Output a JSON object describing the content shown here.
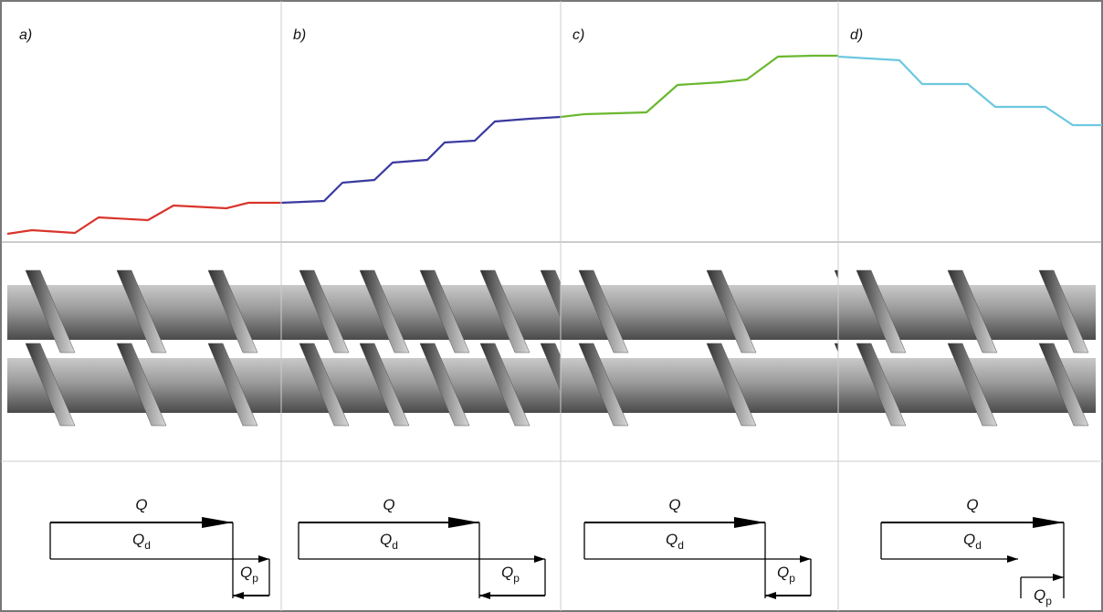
{
  "panels": [
    {
      "label": "a)",
      "total": "Q",
      "drag": {
        "symbol": "Q",
        "subscript": "d"
      },
      "pressure": {
        "symbol": "Q",
        "subscript": "p"
      }
    },
    {
      "label": "b)",
      "total": "Q",
      "drag": {
        "symbol": "Q",
        "subscript": "d"
      },
      "pressure": {
        "symbol": "Q",
        "subscript": "p"
      }
    },
    {
      "label": "c)",
      "total": "Q",
      "drag": {
        "symbol": "Q",
        "subscript": "d"
      },
      "pressure": {
        "symbol": "Q",
        "subscript": "p"
      }
    },
    {
      "label": "d)",
      "total": "Q",
      "drag": {
        "symbol": "Q",
        "subscript": "d"
      },
      "pressure": {
        "symbol": "Q",
        "subscript": "p"
      }
    }
  ]
}
